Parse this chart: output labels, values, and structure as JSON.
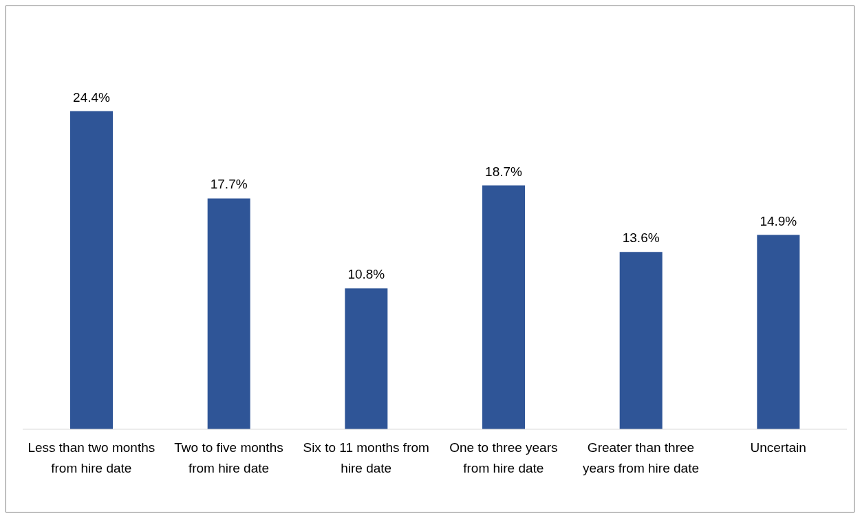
{
  "chart_data": {
    "type": "bar",
    "categories": [
      "Less than two months from hire date",
      "Two to five months from hire date",
      "Six to 11 months from hire date",
      "One to three years from hire date",
      "Greater than three years from hire date",
      "Uncertain"
    ],
    "values": [
      24.4,
      17.7,
      10.8,
      18.7,
      13.6,
      14.9
    ],
    "value_labels": [
      "24.4%",
      "17.7%",
      "10.8%",
      "18.7%",
      "13.6%",
      "14.9%"
    ],
    "color": "#2f5597"
  }
}
